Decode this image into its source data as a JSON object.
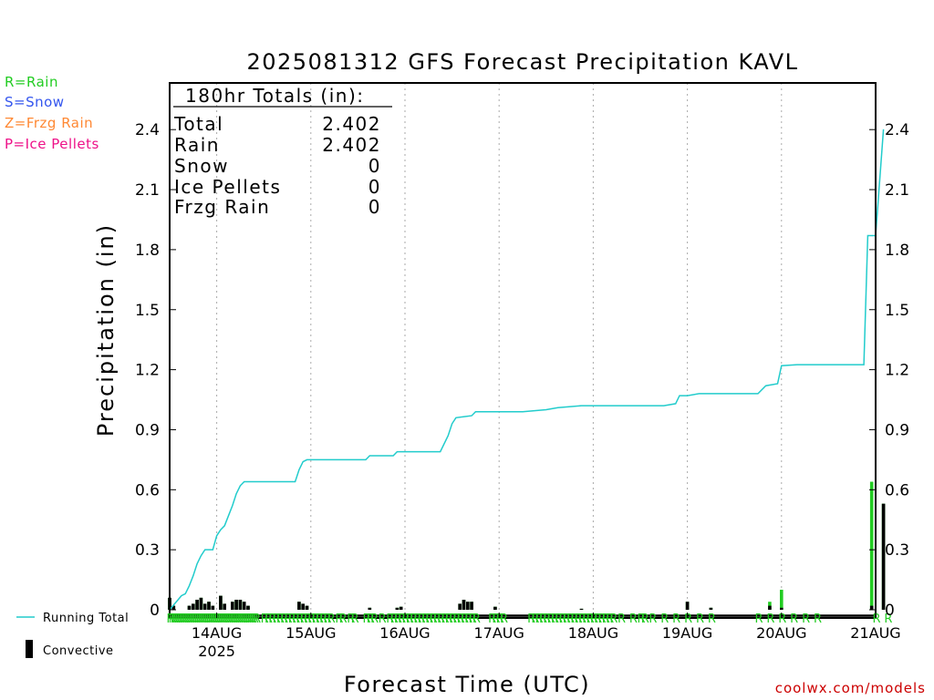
{
  "title": "2025081312 GFS Forecast Precipitation KAVL",
  "precip_key": [
    {
      "text": "R=Rain",
      "color": "#22cc22"
    },
    {
      "text": "S=Snow",
      "color": "#3355ee"
    },
    {
      "text": "Z=Frzg Rain",
      "color": "#ff8833"
    },
    {
      "text": "P=Ice Pellets",
      "color": "#ee1188"
    }
  ],
  "totals_box": {
    "header": "180hr Totals (in):",
    "rows": [
      {
        "label": "Total",
        "value": "2.402"
      },
      {
        "label": "Rain",
        "value": "2.402"
      },
      {
        "label": "Snow",
        "value": "0"
      },
      {
        "label": "Ice Pellets",
        "value": "0"
      },
      {
        "label": "Frzg Rain",
        "value": "0"
      }
    ]
  },
  "legend": {
    "running_total": "Running Total",
    "convective": "Convective"
  },
  "footer_link": "coolwx.com/models",
  "colors": {
    "running_total": "#22cccc",
    "rain_bar": "#22cc22",
    "convective_bar": "#000000",
    "rain_marker": "#22cc22",
    "grid": "#aaaaaa"
  },
  "chart_data": {
    "type": "bar",
    "title": "2025081312 GFS Forecast Precipitation KAVL",
    "xlabel": "Forecast Time (UTC)",
    "ylabel": "Precipitation (in)",
    "ylim": [
      0,
      2.6
    ],
    "yticks": [
      "0",
      "0.3",
      "0.6",
      "0.9",
      "1.2",
      "1.5",
      "1.8",
      "2.1",
      "2.4"
    ],
    "x_unit": "forecast hour",
    "xlim": [
      0,
      183
    ],
    "xticks": [
      {
        "hour": 12,
        "label": "14AUG",
        "sublabel": "2025"
      },
      {
        "hour": 36,
        "label": "15AUG",
        "sublabel": ""
      },
      {
        "hour": 60,
        "label": "16AUG",
        "sublabel": ""
      },
      {
        "hour": 84,
        "label": "17AUG",
        "sublabel": ""
      },
      {
        "hour": 108,
        "label": "18AUG",
        "sublabel": ""
      },
      {
        "hour": 132,
        "label": "19AUG",
        "sublabel": ""
      },
      {
        "hour": 156,
        "label": "20AUG",
        "sublabel": ""
      },
      {
        "hour": 180,
        "label": "21AUG",
        "sublabel": ""
      }
    ],
    "grid": true,
    "series": [
      {
        "name": "Running Total",
        "kind": "line",
        "points": [
          [
            0,
            0.0
          ],
          [
            3,
            0.07
          ],
          [
            4,
            0.08
          ],
          [
            5,
            0.12
          ],
          [
            6,
            0.17
          ],
          [
            7,
            0.23
          ],
          [
            8,
            0.27
          ],
          [
            9,
            0.3
          ],
          [
            11,
            0.3
          ],
          [
            12,
            0.37
          ],
          [
            13,
            0.4
          ],
          [
            14,
            0.42
          ],
          [
            15,
            0.47
          ],
          [
            16,
            0.52
          ],
          [
            17,
            0.58
          ],
          [
            18,
            0.62
          ],
          [
            19,
            0.64
          ],
          [
            25,
            0.64
          ],
          [
            32,
            0.64
          ],
          [
            33,
            0.7
          ],
          [
            34,
            0.74
          ],
          [
            35,
            0.75
          ],
          [
            50,
            0.75
          ],
          [
            51,
            0.77
          ],
          [
            57,
            0.77
          ],
          [
            58,
            0.79
          ],
          [
            66,
            0.79
          ],
          [
            69,
            0.79
          ],
          [
            71,
            0.87
          ],
          [
            72,
            0.93
          ],
          [
            73,
            0.96
          ],
          [
            77,
            0.97
          ],
          [
            78,
            0.99
          ],
          [
            90,
            0.99
          ],
          [
            96,
            1.0
          ],
          [
            99,
            1.01
          ],
          [
            105,
            1.02
          ],
          [
            110,
            1.02
          ],
          [
            126,
            1.02
          ],
          [
            129,
            1.03
          ],
          [
            130,
            1.07
          ],
          [
            132,
            1.07
          ],
          [
            135,
            1.08
          ],
          [
            144,
            1.08
          ],
          [
            150,
            1.08
          ],
          [
            152,
            1.12
          ],
          [
            155,
            1.13
          ],
          [
            156,
            1.22
          ],
          [
            160,
            1.225
          ],
          [
            177,
            1.225
          ],
          [
            178,
            1.87
          ],
          [
            180,
            1.87
          ],
          [
            182,
            2.402
          ]
        ]
      },
      {
        "name": "Rain",
        "kind": "bar",
        "bars": [
          [
            0,
            0.06
          ],
          [
            1,
            0.02
          ],
          [
            5,
            0.02
          ],
          [
            6,
            0.03
          ],
          [
            7,
            0.05
          ],
          [
            8,
            0.06
          ],
          [
            9,
            0.03
          ],
          [
            10,
            0.04
          ],
          [
            11,
            0.02
          ],
          [
            13,
            0.07
          ],
          [
            14,
            0.03
          ],
          [
            16,
            0.04
          ],
          [
            17,
            0.05
          ],
          [
            18,
            0.05
          ],
          [
            19,
            0.04
          ],
          [
            20,
            0.02
          ],
          [
            33,
            0.04
          ],
          [
            34,
            0.03
          ],
          [
            35,
            0.02
          ],
          [
            51,
            0.01
          ],
          [
            58,
            0.01
          ],
          [
            59,
            0.015
          ],
          [
            74,
            0.03
          ],
          [
            75,
            0.05
          ],
          [
            76,
            0.04
          ],
          [
            77,
            0.04
          ],
          [
            83,
            0.015
          ],
          [
            105,
            0.005
          ],
          [
            132,
            0.04
          ],
          [
            138,
            0.01
          ],
          [
            153,
            0.04
          ],
          [
            156,
            0.1
          ],
          [
            179,
            0.64
          ],
          [
            182,
            0.53
          ]
        ]
      },
      {
        "name": "Convective",
        "kind": "bar",
        "bars": [
          [
            0,
            0.06
          ],
          [
            1,
            0.02
          ],
          [
            5,
            0.02
          ],
          [
            6,
            0.03
          ],
          [
            7,
            0.05
          ],
          [
            8,
            0.06
          ],
          [
            9,
            0.03
          ],
          [
            10,
            0.04
          ],
          [
            11,
            0.02
          ],
          [
            13,
            0.07
          ],
          [
            14,
            0.03
          ],
          [
            16,
            0.04
          ],
          [
            17,
            0.05
          ],
          [
            18,
            0.05
          ],
          [
            19,
            0.04
          ],
          [
            20,
            0.02
          ],
          [
            33,
            0.04
          ],
          [
            34,
            0.03
          ],
          [
            35,
            0.02
          ],
          [
            51,
            0.01
          ],
          [
            58,
            0.01
          ],
          [
            59,
            0.015
          ],
          [
            74,
            0.03
          ],
          [
            75,
            0.05
          ],
          [
            76,
            0.04
          ],
          [
            77,
            0.04
          ],
          [
            83,
            0.015
          ],
          [
            105,
            0.005
          ],
          [
            132,
            0.04
          ],
          [
            138,
            0.01
          ],
          [
            153,
            0.02
          ],
          [
            156,
            0.01
          ],
          [
            179,
            0.02
          ],
          [
            182,
            0.53
          ]
        ]
      }
    ],
    "ptype_marker": "R",
    "ptype_marker_hours": [
      0,
      0.5,
      1,
      1.5,
      2,
      2.5,
      3,
      3.5,
      4,
      4.5,
      5,
      5.5,
      6,
      6.5,
      7,
      7.5,
      8,
      8.5,
      9,
      9.5,
      10,
      10.5,
      11,
      11.5,
      12,
      12.5,
      13,
      13.5,
      14,
      14.5,
      15,
      15.5,
      16,
      16.5,
      17,
      17.5,
      18,
      18.5,
      19,
      19.5,
      20,
      20.5,
      21,
      21.5,
      22,
      24,
      25,
      26,
      27,
      28,
      29,
      30,
      31,
      32,
      33,
      34,
      35,
      36,
      37,
      38,
      39,
      40,
      41,
      43,
      44,
      46,
      47,
      50,
      51,
      52,
      54,
      56,
      57,
      58,
      59,
      60,
      61,
      62,
      63,
      64,
      65,
      66,
      67,
      68,
      69,
      70,
      71,
      72,
      73,
      74,
      75,
      76,
      77,
      78,
      82,
      83,
      84,
      85,
      92,
      93,
      94,
      95,
      96,
      97,
      98,
      99,
      100,
      101,
      102,
      103,
      104,
      105,
      106,
      107,
      108,
      109,
      110,
      111,
      112,
      113,
      115,
      118,
      120,
      121,
      123,
      126,
      129,
      132,
      135,
      138,
      150,
      153,
      156,
      159,
      162,
      165,
      180,
      183
    ]
  }
}
